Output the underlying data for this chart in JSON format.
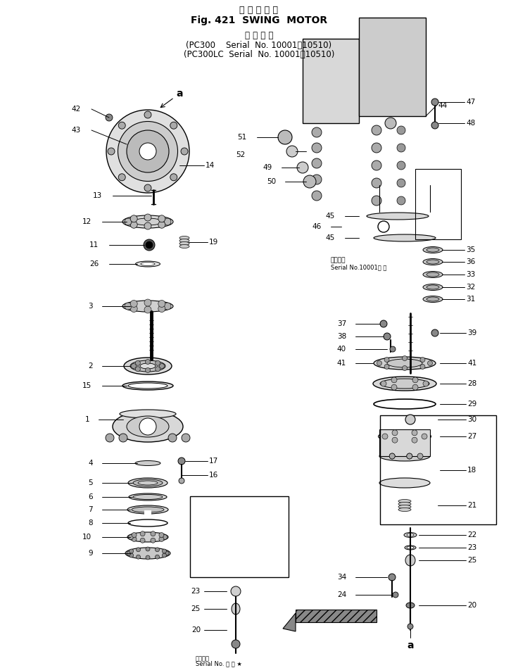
{
  "title_japanese": "旋 回 モ ー タ",
  "title_english": "Fig. 421  SWING  MOTOR",
  "subtitle_japanese": "適 用 号 機",
  "subtitle_line1": "(PC300    Serial  No. 10001！10510)",
  "subtitle_line2": "(PC300LC  Serial  No. 10001！10510)",
  "applic_text1": "適用号機",
  "applic_text2": "Serial No.10001～ ・",
  "inset_text1": "適用号機",
  "inset_text2": "Serial No. ・ ～ ★",
  "bg_color": "#ffffff",
  "line_color": "#000000"
}
